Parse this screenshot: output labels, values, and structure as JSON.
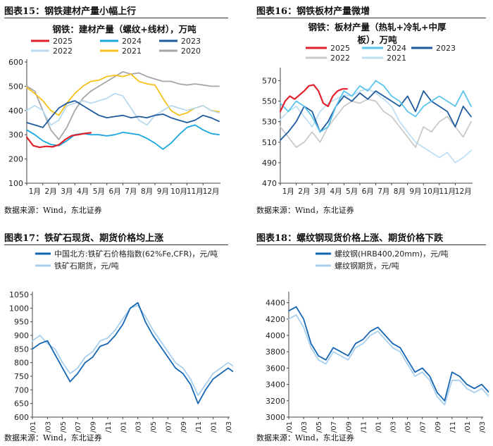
{
  "panels": [
    {
      "label": "图表15：钢铁建材产量小幅上行",
      "source": "数据来源：Wind，东北证券",
      "chart_data": {
        "type": "line",
        "title": "钢铁：建材产量（螺纹+线材），万吨",
        "x_ticks": [
          "1月",
          "2月",
          "3月",
          "4月",
          "5月",
          "6月",
          "7月",
          "8月",
          "9月",
          "10月",
          "11月",
          "12月"
        ],
        "ylim": [
          100,
          600
        ],
        "y_ticks": [
          100,
          200,
          300,
          400,
          500,
          600
        ],
        "series": [
          {
            "name": "2025",
            "color": "#e0202a",
            "width": 2.2,
            "x": [
              0,
              0.4,
              0.8,
              1.2,
              1.6,
              2,
              2.4,
              2.8,
              3.2,
              3.6,
              4
            ],
            "y": [
              290,
              255,
              248,
              252,
              250,
              258,
              280,
              296,
              300,
              305,
              308
            ]
          },
          {
            "name": "2024",
            "color": "#1aa6df",
            "width": 1.8,
            "x": [
              0,
              0.5,
              1,
              1.5,
              2,
              2.5,
              3,
              3.5,
              4,
              4.5,
              5,
              5.5,
              6,
              6.5,
              7,
              7.5,
              8,
              8.5,
              9,
              9.5,
              10,
              10.5,
              11,
              11.5,
              12
            ],
            "y": [
              320,
              300,
              275,
              260,
              255,
              275,
              300,
              305,
              300,
              300,
              295,
              300,
              310,
              305,
              300,
              285,
              265,
              240,
              265,
              300,
              330,
              340,
              320,
              305,
              300
            ]
          },
          {
            "name": "2023",
            "color": "#1e5a9e",
            "width": 1.8,
            "x": [
              0,
              0.5,
              1,
              1.5,
              2,
              2.5,
              3,
              3.5,
              4,
              4.5,
              5,
              5.5,
              6,
              6.5,
              7,
              7.5,
              8,
              8.5,
              9,
              9.5,
              10,
              10.5,
              11,
              11.5,
              12
            ],
            "y": [
              350,
              340,
              330,
              370,
              410,
              430,
              440,
              420,
              400,
              380,
              370,
              375,
              380,
              370,
              375,
              370,
              380,
              385,
              370,
              360,
              350,
              360,
              380,
              370,
              355
            ]
          },
          {
            "name": "2022",
            "color": "#b8d9ef",
            "width": 1.8,
            "x": [
              0,
              0.5,
              1,
              1.5,
              2,
              2.5,
              3,
              3.5,
              4,
              4.5,
              5,
              5.5,
              6,
              6.5,
              7,
              7.5,
              8,
              8.5,
              9,
              9.5,
              10,
              10.5,
              11,
              11.5,
              12
            ],
            "y": [
              400,
              420,
              400,
              340,
              360,
              420,
              430,
              440,
              430,
              440,
              450,
              470,
              460,
              410,
              360,
              340,
              380,
              400,
              420,
              410,
              400,
              410,
              420,
              400,
              390
            ]
          },
          {
            "name": "2021",
            "color": "#f4c21a",
            "width": 1.8,
            "x": [
              0,
              0.5,
              1,
              1.5,
              2,
              2.5,
              3,
              3.5,
              4,
              4.5,
              5,
              5.5,
              6,
              6.5,
              7,
              7.5,
              8,
              8.5,
              9,
              9.5,
              10,
              10.5,
              11,
              11.5,
              12
            ],
            "y": [
              495,
              470,
              440,
              400,
              380,
              430,
              470,
              500,
              520,
              525,
              540,
              545,
              540,
              550,
              520,
              510,
              505,
              450,
              400,
              380,
              390,
              410,
              420,
              400,
              395
            ]
          },
          {
            "name": "2020",
            "color": "#a6a6a6",
            "width": 1.8,
            "x": [
              0,
              0.5,
              1,
              1.5,
              2,
              2.5,
              3,
              3.5,
              4,
              4.5,
              5,
              5.5,
              6,
              6.5,
              7,
              7.5,
              8,
              8.5,
              9,
              9.5,
              10,
              10.5,
              11,
              11.5,
              12
            ],
            "y": [
              500,
              480,
              400,
              320,
              280,
              330,
              400,
              450,
              480,
              500,
              520,
              540,
              560,
              550,
              555,
              540,
              530,
              520,
              520,
              510,
              505,
              510,
              505,
              500,
              500
            ]
          }
        ]
      }
    },
    {
      "label": "图表16：钢铁板材产量微增",
      "source": "数据来源：Wind，东北证券",
      "chart_data": {
        "type": "line",
        "title": "钢铁：板材产量（热轧+冷轧+中厚板），万吨",
        "title_lines": [
          "钢铁：板材产量（热轧+冷轧+中厚",
          "板），万吨"
        ],
        "x_ticks": [
          "1月",
          "2月",
          "3月",
          "4月",
          "5月",
          "6月",
          "7月",
          "8月",
          "9月",
          "10月",
          "11月",
          "12月"
        ],
        "ylim": [
          470,
          580
        ],
        "y_ticks": [
          470,
          490,
          510,
          530,
          550,
          570
        ],
        "series": [
          {
            "name": "2025",
            "color": "#e0202a",
            "width": 2.2,
            "x": [
              0,
              0.3,
              0.6,
              0.9,
              1.2,
              1.5,
              1.8,
              2.1,
              2.4,
              2.7,
              3,
              3.3,
              3.6,
              3.9,
              4.2
            ],
            "y": [
              540,
              550,
              555,
              552,
              556,
              560,
              565,
              566,
              560,
              548,
              545,
              555,
              560,
              562,
              562
            ]
          },
          {
            "name": "2024",
            "color": "#5cc4ec",
            "width": 1.8,
            "x": [
              0,
              0.5,
              1,
              1.5,
              2,
              2.5,
              3,
              3.5,
              4,
              4.5,
              5,
              5.5,
              6,
              6.5,
              7,
              7.5,
              8,
              8.5,
              9,
              9.5,
              10,
              10.5,
              11,
              11.5,
              12
            ],
            "y": [
              548,
              540,
              550,
              545,
              535,
              520,
              525,
              545,
              560,
              555,
              565,
              560,
              570,
              565,
              555,
              550,
              540,
              535,
              545,
              550,
              555,
              550,
              545,
              560,
              545
            ]
          },
          {
            "name": "2023",
            "color": "#1e5a9e",
            "width": 1.8,
            "x": [
              0,
              0.5,
              1,
              1.5,
              2,
              2.5,
              3,
              3.5,
              4,
              4.5,
              5,
              5.5,
              6,
              6.5,
              7,
              7.5,
              8,
              8.5,
              9,
              9.5,
              10,
              10.5,
              11,
              11.5,
              12
            ],
            "y": [
              512,
              520,
              530,
              545,
              540,
              520,
              530,
              545,
              555,
              550,
              558,
              552,
              560,
              555,
              550,
              545,
              555,
              540,
              560,
              550,
              545,
              540,
              525,
              545,
              535
            ]
          },
          {
            "name": "2022",
            "color": "#c9c9c9",
            "width": 1.8,
            "x": [
              0,
              0.5,
              1,
              1.5,
              2,
              2.5,
              3,
              3.5,
              4,
              4.5,
              5,
              5.5,
              6,
              6.5,
              7,
              7.5,
              8,
              8.5,
              9,
              9.5,
              10,
              10.5,
              11,
              11.5,
              12
            ],
            "y": [
              525,
              515,
              505,
              510,
              520,
              510,
              525,
              535,
              545,
              550,
              548,
              552,
              550,
              540,
              535,
              525,
              515,
              505,
              525,
              520,
              530,
              535,
              525,
              515,
              530
            ]
          },
          {
            "name": "2021",
            "color": "#bfe0f3",
            "width": 1.8,
            "x": [
              0,
              0.5,
              1,
              1.5,
              2,
              2.5,
              3,
              3.5,
              4,
              4.5,
              5,
              5.5,
              6,
              6.5,
              7,
              7.5,
              8,
              8.5,
              9,
              9.5,
              10,
              10.5,
              11,
              11.5,
              12
            ],
            "y": [
              532,
              540,
              545,
              535,
              525,
              540,
              548,
              552,
              556,
              555,
              560,
              562,
              558,
              552,
              545,
              530,
              520,
              510,
              505,
              500,
              495,
              500,
              490,
              495,
              502
            ]
          }
        ]
      }
    },
    {
      "label": "图表17：铁矿石现货、期货价格均上涨",
      "source": "数据来源：Wind，东北证券",
      "chart_data": {
        "type": "line",
        "title": "",
        "x_ticks": [
          "23/01",
          "23/03",
          "23/05",
          "23/07",
          "23/09",
          "23/11",
          "24/01",
          "24/03",
          "24/05",
          "24/07",
          "24/09",
          "24/11",
          "25/01",
          "25/03"
        ],
        "ylim": [
          600,
          1050
        ],
        "y_ticks": [
          600,
          650,
          700,
          750,
          800,
          850,
          900,
          950,
          1000,
          1050
        ],
        "series": [
          {
            "name": "中国北方:铁矿石价格指数(62%Fe,CFR)，元/吨",
            "color": "#1565b3",
            "width": 1.8,
            "x": [
              0,
              0.5,
              1,
              1.5,
              2,
              2.5,
              3,
              3.5,
              4,
              4.5,
              5,
              5.5,
              6,
              6.5,
              7,
              7.5,
              8,
              8.5,
              9,
              9.5,
              10,
              10.5,
              11,
              11.5,
              12,
              12.5,
              13,
              13.5,
              14
            ],
            "y": [
              850,
              870,
              880,
              830,
              780,
              730,
              760,
              800,
              820,
              860,
              870,
              900,
              940,
              1000,
              1020,
              950,
              900,
              860,
              820,
              780,
              760,
              720,
              650,
              700,
              740,
              760,
              780,
              760,
              760
            ]
          },
          {
            "name": "铁矿石期货，元/吨",
            "color": "#a9cfee",
            "width": 1.8,
            "x": [
              0,
              0.5,
              1,
              1.5,
              2,
              2.5,
              3,
              3.5,
              4,
              4.5,
              5,
              5.5,
              6,
              6.5,
              7,
              7.5,
              8,
              8.5,
              9,
              9.5,
              10,
              10.5,
              11,
              11.5,
              12,
              12.5,
              13,
              13.5,
              14
            ],
            "y": [
              880,
              900,
              870,
              850,
              800,
              760,
              780,
              820,
              840,
              880,
              890,
              920,
              960,
              1000,
              1010,
              970,
              920,
              880,
              840,
              800,
              780,
              740,
              680,
              720,
              760,
              780,
              800,
              780,
              790
            ]
          }
        ]
      }
    },
    {
      "label": "图表18：螺纹钢现货价格上涨、期货价格下跌",
      "source": "数据来源：Wind，东北证券",
      "chart_data": {
        "type": "line",
        "title": "",
        "x_ticks": [
          "23/01",
          "23/03",
          "23/05",
          "23/07",
          "23/09",
          "23/11",
          "24/01",
          "24/03",
          "24/05",
          "24/07",
          "24/09",
          "24/11",
          "25/01",
          "25/03"
        ],
        "ylim": [
          3000,
          4500
        ],
        "y_ticks": [
          3000,
          3200,
          3400,
          3600,
          3800,
          4000,
          4200,
          4400
        ],
        "series": [
          {
            "name": "螺纹钢(HRB400,20mm)，元/吨",
            "color": "#1565b3",
            "width": 1.8,
            "x": [
              0,
              0.5,
              1,
              1.5,
              2,
              2.5,
              3,
              3.5,
              4,
              4.5,
              5,
              5.5,
              6,
              6.5,
              7,
              7.5,
              8,
              8.5,
              9,
              9.5,
              10,
              10.5,
              11,
              11.5,
              12,
              12.5,
              13,
              13.5,
              14
            ],
            "y": [
              4300,
              4350,
              4200,
              3900,
              3750,
              3700,
              3850,
              3800,
              3750,
              3900,
              3950,
              4050,
              4100,
              4000,
              3900,
              3850,
              3700,
              3550,
              3600,
              3500,
              3300,
              3200,
              3550,
              3500,
              3400,
              3350,
              3400,
              3300,
              3250
            ]
          },
          {
            "name": "螺纹钢期货，元/吨",
            "color": "#a9cfee",
            "width": 1.8,
            "x": [
              0,
              0.5,
              1,
              1.5,
              2,
              2.5,
              3,
              3.5,
              4,
              4.5,
              5,
              5.5,
              6,
              6.5,
              7,
              7.5,
              8,
              8.5,
              9,
              9.5,
              10,
              10.5,
              11,
              11.5,
              12,
              12.5,
              13,
              13.5,
              14
            ],
            "y": [
              4200,
              4250,
              4100,
              3850,
              3700,
              3650,
              3800,
              3750,
              3700,
              3850,
              3900,
              4000,
              4050,
              3950,
              3850,
              3800,
              3650,
              3500,
              3550,
              3450,
              3250,
              3150,
              3450,
              3450,
              3350,
              3300,
              3350,
              3250,
              3200
            ]
          }
        ]
      }
    }
  ]
}
